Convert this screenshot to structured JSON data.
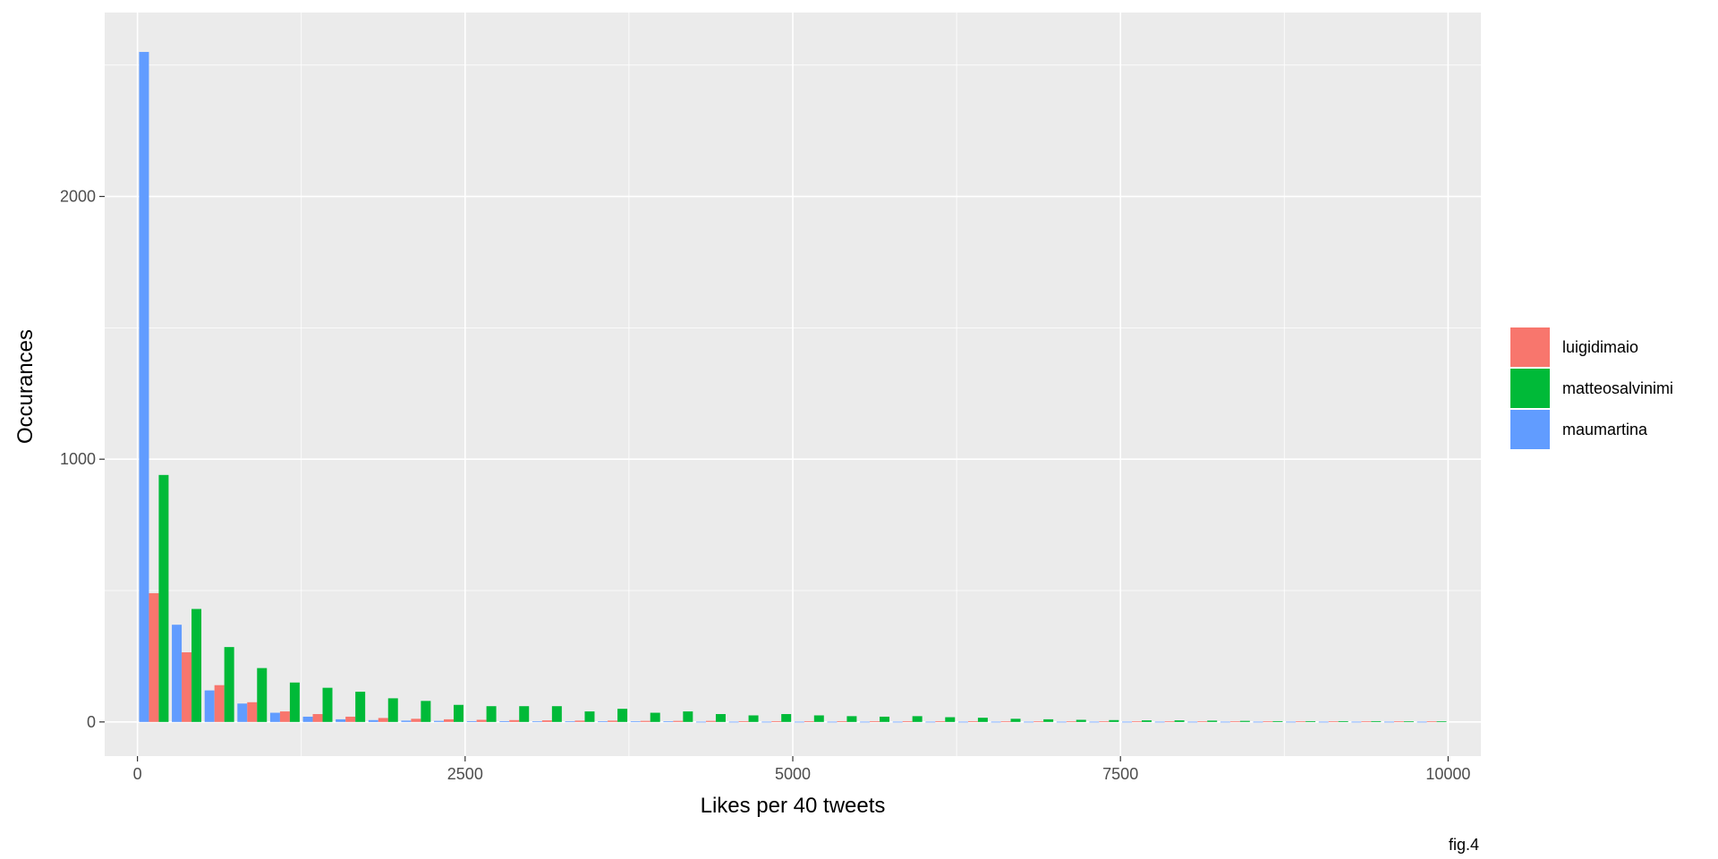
{
  "chart_data": {
    "type": "bar",
    "title": "",
    "xlabel": "Likes per 40 tweets",
    "ylabel": "Occurances",
    "caption": "fig.4",
    "xlim": [
      -250,
      10250
    ],
    "ylim": [
      -130,
      2700
    ],
    "x_ticks": [
      0,
      2500,
      5000,
      7500,
      10000
    ],
    "x_tick_labels": [
      "0",
      "2500",
      "5000",
      "7500",
      "10000"
    ],
    "y_ticks": [
      0,
      1000,
      2000
    ],
    "y_tick_labels": [
      "0",
      "1000",
      "2000"
    ],
    "grid": true,
    "legend_position": "right",
    "bin_width": 250,
    "bin_centers": [
      125,
      375,
      625,
      875,
      1125,
      1375,
      1625,
      1875,
      2125,
      2375,
      2625,
      2875,
      3125,
      3375,
      3625,
      3875,
      4125,
      4375,
      4625,
      4875,
      5125,
      5375,
      5625,
      5875,
      6125,
      6375,
      6625,
      6875,
      7125,
      7375,
      7625,
      7875,
      8125,
      8375,
      8625,
      8875,
      9125,
      9375,
      9625,
      9875
    ],
    "series": [
      {
        "name": "maumartina",
        "color": "#619CFF",
        "values": [
          2550,
          370,
          120,
          70,
          35,
          20,
          10,
          7,
          5,
          4,
          3,
          3,
          2,
          2,
          2,
          2,
          2,
          1,
          1,
          1,
          1,
          1,
          1,
          1,
          1,
          1,
          1,
          1,
          1,
          1,
          1,
          1,
          1,
          1,
          1,
          1,
          1,
          1,
          1,
          1
        ]
      },
      {
        "name": "luigidimaio",
        "color": "#F8766D",
        "values": [
          490,
          265,
          140,
          75,
          40,
          30,
          20,
          15,
          12,
          10,
          8,
          7,
          6,
          5,
          5,
          4,
          4,
          4,
          3,
          3,
          3,
          3,
          3,
          3,
          3,
          3,
          2,
          2,
          2,
          2,
          2,
          2,
          2,
          2,
          2,
          2,
          2,
          2,
          2,
          2
        ]
      },
      {
        "name": "matteosalvinimi",
        "color": "#00BA38",
        "values": [
          940,
          430,
          285,
          205,
          150,
          130,
          115,
          90,
          80,
          65,
          60,
          60,
          60,
          40,
          50,
          35,
          40,
          30,
          25,
          30,
          25,
          22,
          20,
          22,
          18,
          16,
          12,
          10,
          8,
          7,
          6,
          6,
          5,
          4,
          3,
          3,
          3,
          3,
          2,
          2
        ]
      }
    ]
  }
}
